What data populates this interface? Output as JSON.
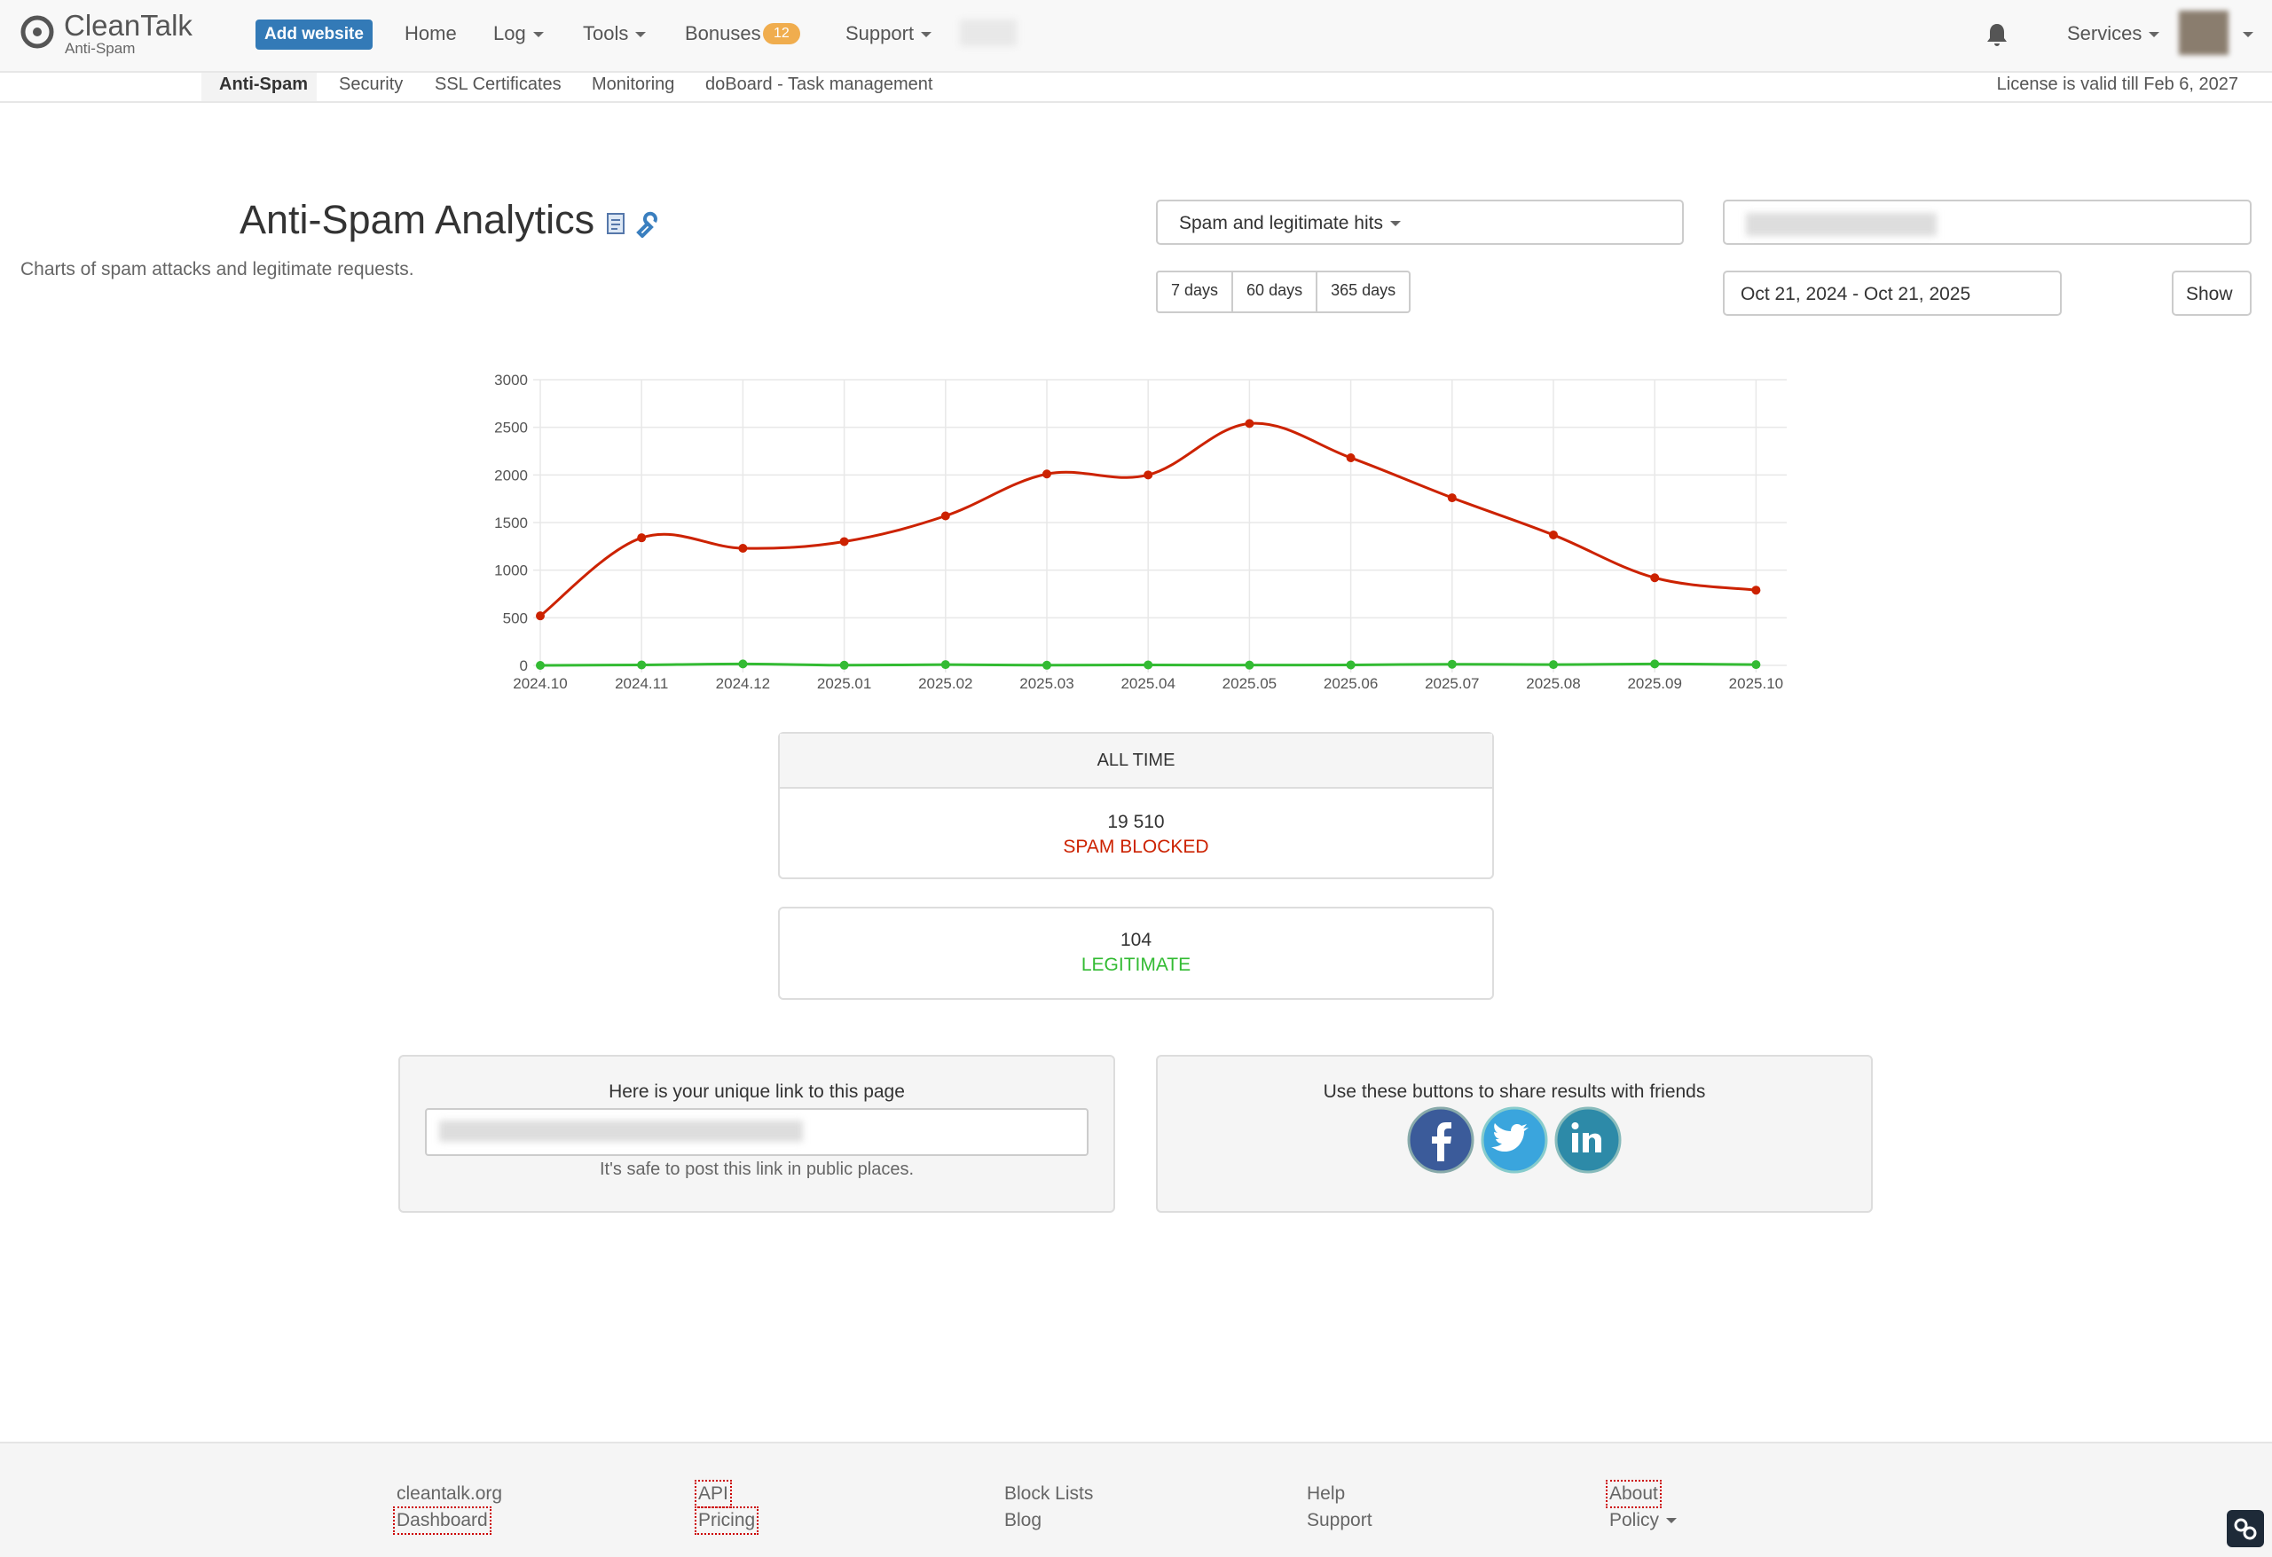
{
  "nav": {
    "brand": "CleanTalk",
    "brand_sub": "Anti-Spam",
    "add_website": "Add website",
    "items": [
      "Home",
      "Log",
      "Tools",
      "Bonuses",
      "Support"
    ],
    "bonus_badge": "12",
    "services": "Services"
  },
  "subnav": {
    "items": [
      "Anti-Spam",
      "Security",
      "SSL Certificates",
      "Monitoring",
      "doBoard - Task management"
    ],
    "license": "License is valid till Feb 6, 2027"
  },
  "header": {
    "title": "Anti-Spam Analytics",
    "subtitle": "Charts of spam attacks and legitimate requests.",
    "select": "Spam and legitimate hits",
    "ranges": [
      "7 days",
      "60 days",
      "365 days"
    ],
    "date_range": "Oct 21, 2024 - Oct 21, 2025",
    "show": "Show"
  },
  "chart_data": {
    "type": "line",
    "categories": [
      "2024.10",
      "2024.11",
      "2024.12",
      "2025.01",
      "2025.02",
      "2025.03",
      "2025.04",
      "2025.05",
      "2025.06",
      "2025.07",
      "2025.08",
      "2025.09",
      "2025.10"
    ],
    "series": [
      {
        "color": "#cc2200",
        "values": [
          520,
          1340,
          1230,
          1300,
          1570,
          2010,
          2000,
          2540,
          2180,
          1760,
          1370,
          920,
          790
        ]
      },
      {
        "color": "#33bb33",
        "values": [
          0,
          5,
          15,
          2,
          8,
          2,
          5,
          3,
          5,
          12,
          8,
          15,
          8
        ]
      }
    ],
    "ylim": [
      0,
      3000
    ],
    "yticks": [
      0,
      500,
      1000,
      1500,
      2000,
      2500,
      3000
    ],
    "grid": true
  },
  "stats": {
    "heading": "ALL TIME",
    "spam_value": "19 510",
    "spam_label": "SPAM BLOCKED",
    "legit_value": "104",
    "legit_label": "LEGITIMATE"
  },
  "share": {
    "link_title": "Here is your unique link to this page",
    "link_note": "It's safe to post this link in public places.",
    "social_title": "Use these buttons to share results with friends"
  },
  "footer": {
    "columns": [
      [
        "cleantalk.org",
        "Dashboard"
      ],
      [
        "API",
        "Pricing"
      ],
      [
        "Block Lists",
        "Blog"
      ],
      [
        "Help",
        "Support"
      ],
      [
        "About",
        "Policy"
      ]
    ]
  }
}
